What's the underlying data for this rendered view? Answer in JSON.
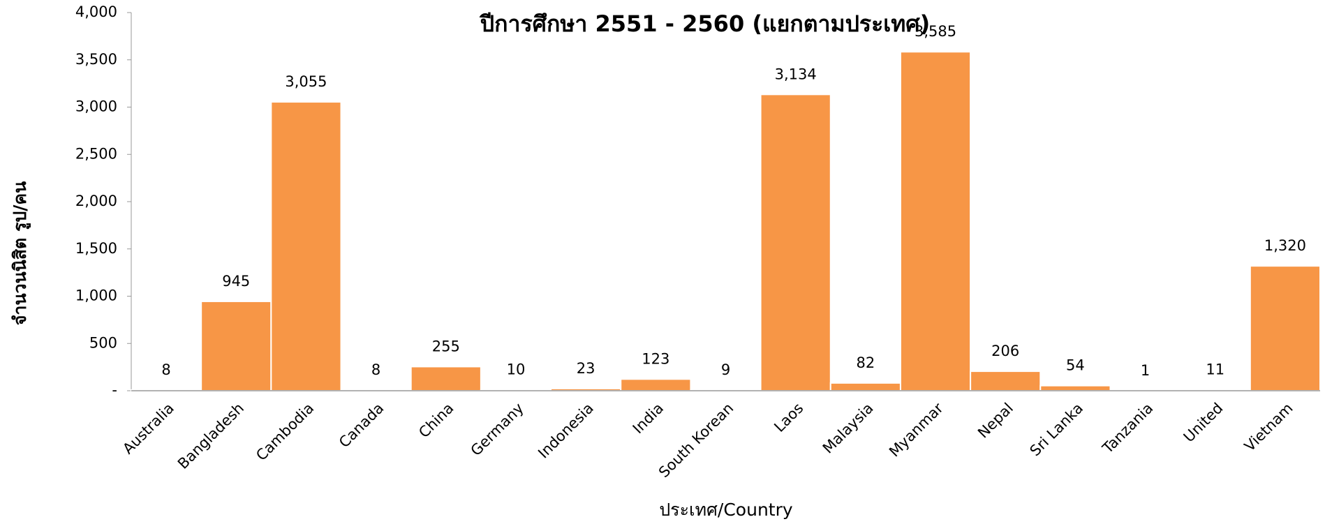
{
  "chart_data": {
    "type": "bar",
    "title": "ปีการศึกษา 2551 - 2560 (แยกตามประเทศ)",
    "x_label": "ประเทศ/Country",
    "y_label": "จำนวนนิสิต รูป/คน",
    "categories": [
      "Australia",
      "Bangladesh",
      "Cambodia",
      "Canada",
      "China",
      "Germany",
      "Indonesia",
      "India",
      "South Korean",
      "Laos",
      "Malaysia",
      "Myanmar",
      "Nepal",
      "Sri Lanka",
      "Tanzania",
      "United",
      "Vietnam"
    ],
    "values": [
      8,
      945,
      3055,
      8,
      255,
      10,
      23,
      123,
      9,
      3134,
      82,
      3585,
      206,
      54,
      1,
      11,
      1320
    ],
    "value_labels": [
      "8",
      "945",
      "3,055",
      "8",
      "255",
      "10",
      "23",
      "123",
      "9",
      "3,134",
      "82",
      "3,585",
      "206",
      "54",
      "1",
      "11",
      "1,320"
    ],
    "color": "#f79646",
    "ylim": [
      0,
      4000
    ],
    "yticks": [
      {
        "value": 0,
        "label": "-"
      },
      500,
      {
        "value": 1000,
        "label": "1,000"
      },
      {
        "value": 1500,
        "label": "1,500"
      },
      {
        "value": 2000,
        "label": "2,000"
      },
      {
        "value": 2500,
        "label": "2,500"
      },
      {
        "value": 3000,
        "label": "3,000"
      },
      {
        "value": 3500,
        "label": "3,500"
      },
      {
        "value": 4000,
        "label": "4,000"
      }
    ],
    "grid": false
  }
}
